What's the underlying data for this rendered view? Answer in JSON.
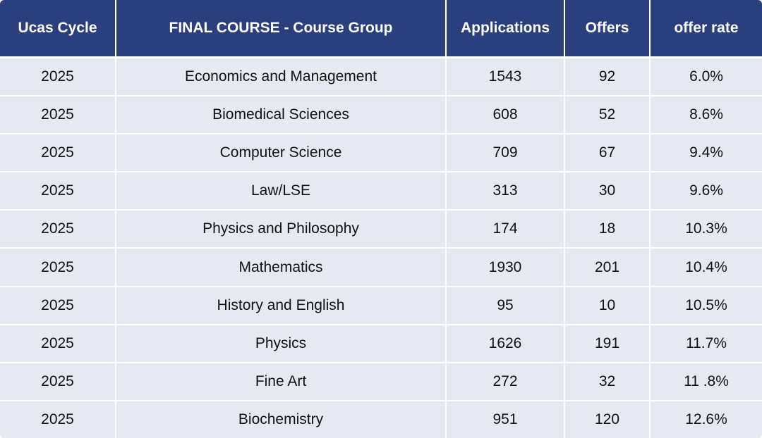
{
  "table": {
    "headers": [
      "Ucas Cycle",
      "FINAL COURSE - Course Group",
      "Applications",
      "Offers",
      "offer rate"
    ],
    "rows": [
      [
        "2025",
        "Economics and Management",
        "1543",
        "92",
        "6.0%"
      ],
      [
        "2025",
        "Biomedical Sciences",
        "608",
        "52",
        "8.6%"
      ],
      [
        "2025",
        "Computer Science",
        "709",
        "67",
        "9.4%"
      ],
      [
        "2025",
        "Law/LSE",
        "313",
        "30",
        "9.6%"
      ],
      [
        "2025",
        "Physics and Philosophy",
        "174",
        "18",
        "10.3%"
      ],
      [
        "2025",
        "Mathematics",
        "1930",
        "201",
        "10.4%"
      ],
      [
        "2025",
        "History and English",
        "95",
        "10",
        "10.5%"
      ],
      [
        "2025",
        "Physics",
        "1626",
        "191",
        "11.7%"
      ],
      [
        "2025",
        "Fine Art",
        "272",
        "32",
        "11 .8%"
      ],
      [
        "2025",
        "Biochemistry",
        "951",
        "120",
        "12.6%"
      ]
    ]
  },
  "colors": {
    "header_bg": "#2b3f7e",
    "header_text": "#ffffff",
    "row_bg": "#e6e9f2",
    "row_text": "#111111"
  }
}
